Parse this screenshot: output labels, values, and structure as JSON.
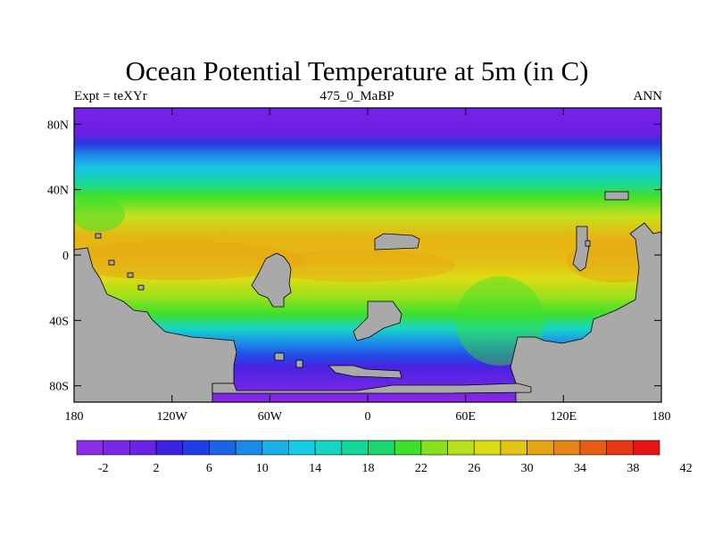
{
  "title": "Ocean Potential Temperature at 5m (in C)",
  "subtitle_left": "Expt = teXYr",
  "subtitle_center": "475_0_MaBP",
  "subtitle_right": "ANN",
  "colors": {
    "land": "#a9a9a9",
    "background": "#ffffff"
  },
  "map": {
    "lon_ticks": [
      "180",
      "120W",
      "60W",
      "0",
      "60E",
      "120E",
      "180"
    ],
    "lat_ticks": [
      "80N",
      "40N",
      "0",
      "40S",
      "80S"
    ]
  },
  "colorbar": {
    "labels": [
      "-2",
      "2",
      "6",
      "10",
      "14",
      "18",
      "22",
      "26",
      "30",
      "34",
      "38",
      "42"
    ],
    "colors": [
      "#8c2ee6",
      "#7b28e6",
      "#6a22e4",
      "#3a22e0",
      "#1f3ee6",
      "#1c64e6",
      "#1c8ae8",
      "#1caee8",
      "#16cbe6",
      "#14d6c0",
      "#12d69a",
      "#1ad66e",
      "#3ee02c",
      "#86e01c",
      "#b6e01c",
      "#dcdc14",
      "#e6c414",
      "#e6a614",
      "#e68414",
      "#e65e14",
      "#e63a14",
      "#e61414"
    ]
  }
}
